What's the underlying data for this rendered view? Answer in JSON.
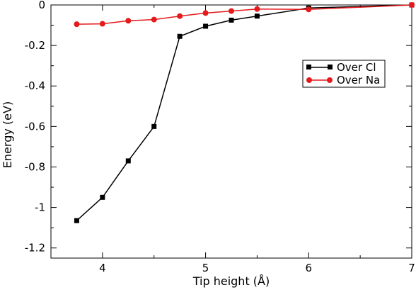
{
  "chart_data": {
    "type": "line",
    "xlabel": "Tip height (Å)",
    "ylabel": "Energy (eV)",
    "xlim": [
      3.5,
      7
    ],
    "ylim": [
      -1.25,
      0
    ],
    "x_ticks": [
      4,
      5,
      6,
      7
    ],
    "y_ticks": [
      0,
      -0.2,
      -0.4,
      -0.6,
      -0.8,
      -1,
      -1.2
    ],
    "x_tick_labels": [
      "4",
      "5",
      "6",
      "7"
    ],
    "y_tick_labels": [
      "0",
      "-0.2",
      "-0.4",
      "-0.6",
      "-0.8",
      "-1",
      "-1.2"
    ],
    "grid": false,
    "legend_position": "right",
    "series": [
      {
        "name": "Over Cl",
        "color": "#000000",
        "marker": "square",
        "x": [
          3.75,
          4.0,
          4.25,
          4.5,
          4.75,
          5.0,
          5.25,
          5.5,
          6.0,
          7.0
        ],
        "y": [
          -1.065,
          -0.95,
          -0.77,
          -0.6,
          -0.155,
          -0.105,
          -0.075,
          -0.055,
          -0.015,
          0.0
        ]
      },
      {
        "name": "Over Na",
        "color": "#e41a1c",
        "marker": "circle",
        "x": [
          3.75,
          4.0,
          4.25,
          4.5,
          4.75,
          5.0,
          5.25,
          5.5,
          6.0,
          7.0
        ],
        "y": [
          -0.095,
          -0.093,
          -0.078,
          -0.072,
          -0.055,
          -0.04,
          -0.03,
          -0.02,
          -0.022,
          0.0
        ]
      }
    ]
  }
}
